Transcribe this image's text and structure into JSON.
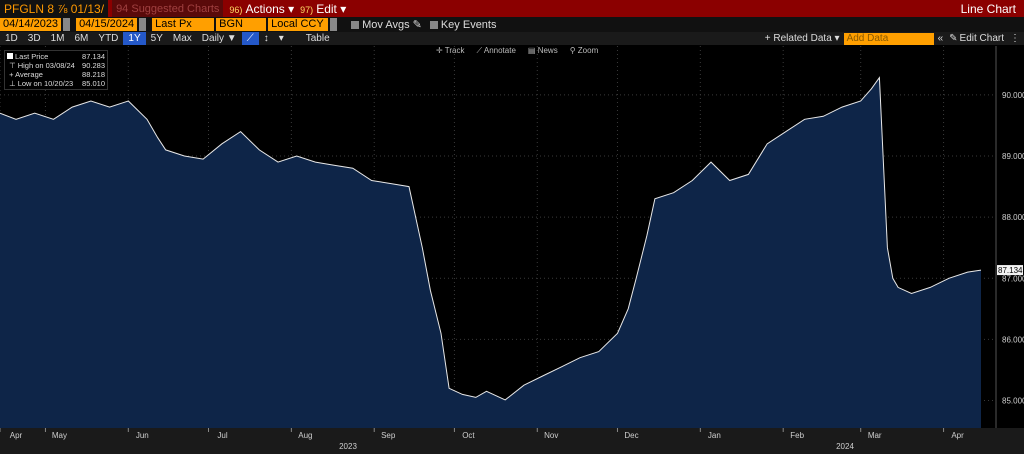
{
  "toolbar": {
    "ticker": "PFGLN 8 ⅞ 01/13/",
    "suggested": "94 Suggested Charts",
    "actions_num": "96)",
    "actions": "Actions",
    "edit_num": "97)",
    "edit": "Edit",
    "title": "Line Chart"
  },
  "params": {
    "start_date": "04/14/2023",
    "end_date": "04/15/2024",
    "field": "Last Px",
    "source": "BGN",
    "currency": "Local CCY",
    "mov_avgs": "Mov Avgs",
    "key_events": "Key Events"
  },
  "periods": [
    "1D",
    "3D",
    "1M",
    "6M",
    "YTD",
    "1Y",
    "5Y",
    "Max"
  ],
  "selected_period": "1Y",
  "frequency": "Daily ▼",
  "table_label": "Table",
  "related_data": "+ Related Data ▾",
  "add_data": "Add Data",
  "edit_chart": "Edit Chart",
  "tools": [
    "Track",
    "Annotate",
    "News",
    "Zoom"
  ],
  "legend": {
    "last_label": "Last Price",
    "last_value": "87.134",
    "high_label": "High on 03/08/24",
    "high_value": "90.283",
    "avg_label": "Average",
    "avg_value": "88.218",
    "low_label": "Low on 10/20/23",
    "low_value": "85.010"
  },
  "chart_data": {
    "type": "area",
    "title": "",
    "xlabel": "",
    "ylabel": "",
    "x_ticks": [
      "Apr",
      "May",
      "Jun",
      "Jul",
      "Aug",
      "Sep",
      "Oct",
      "Nov",
      "Dec",
      "Jan",
      "Feb",
      "Mar",
      "Apr"
    ],
    "year_labels": [
      "2023",
      "2024"
    ],
    "y_ticks": [
      "90.000",
      "89.000",
      "88.000",
      "87.000",
      "86.000",
      "85.000"
    ],
    "ylim": [
      84.55,
      90.8
    ],
    "last_value_label": "87.134",
    "series": [
      {
        "x": [
          "2023-04-14",
          "2023-04-20",
          "2023-04-27",
          "2023-05-04",
          "2023-05-11",
          "2023-05-18",
          "2023-05-25",
          "2023-06-01",
          "2023-06-08",
          "2023-06-12",
          "2023-06-15",
          "2023-06-22",
          "2023-06-29",
          "2023-07-06",
          "2023-07-13",
          "2023-07-20",
          "2023-07-27",
          "2023-08-03",
          "2023-08-10",
          "2023-08-17",
          "2023-08-24",
          "2023-08-31",
          "2023-09-07",
          "2023-09-14",
          "2023-09-19",
          "2023-09-22",
          "2023-09-26",
          "2023-09-29",
          "2023-10-04",
          "2023-10-09",
          "2023-10-13",
          "2023-10-20",
          "2023-10-27",
          "2023-11-03",
          "2023-11-10",
          "2023-11-17",
          "2023-11-24",
          "2023-12-01",
          "2023-12-05",
          "2023-12-08",
          "2023-12-12",
          "2023-12-15",
          "2023-12-22",
          "2023-12-29",
          "2024-01-05",
          "2024-01-12",
          "2024-01-19",
          "2024-01-26",
          "2024-02-02",
          "2024-02-09",
          "2024-02-16",
          "2024-02-23",
          "2024-03-01",
          "2024-03-05",
          "2024-03-08",
          "2024-03-11",
          "2024-03-13",
          "2024-03-15",
          "2024-03-20",
          "2024-03-27",
          "2024-04-03",
          "2024-04-10",
          "2024-04-15"
        ],
        "y": [
          89.7,
          89.6,
          89.7,
          89.6,
          89.8,
          89.9,
          89.8,
          89.9,
          89.6,
          89.3,
          89.1,
          89.0,
          88.95,
          89.2,
          89.4,
          89.1,
          88.9,
          89.0,
          88.9,
          88.85,
          88.8,
          88.6,
          88.55,
          88.5,
          87.5,
          86.8,
          86.1,
          85.2,
          85.1,
          85.05,
          85.15,
          85.01,
          85.25,
          85.4,
          85.55,
          85.7,
          85.8,
          86.1,
          86.5,
          87.0,
          87.7,
          88.3,
          88.4,
          88.6,
          88.9,
          88.6,
          88.7,
          89.2,
          89.4,
          89.6,
          89.65,
          89.8,
          89.9,
          90.1,
          90.283,
          87.5,
          87.0,
          86.85,
          86.75,
          86.85,
          87.0,
          87.1,
          87.134
        ]
      }
    ]
  }
}
